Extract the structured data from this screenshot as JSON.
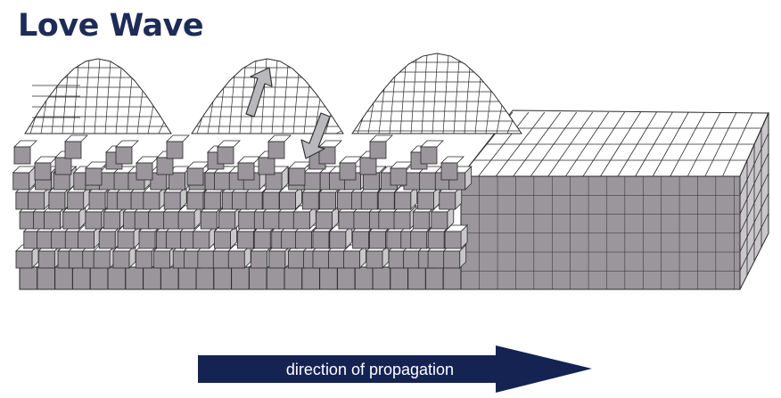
{
  "title": "Love Wave",
  "arrow_label": "direction of propagation",
  "colors": {
    "title": "#1f2b57",
    "arrow": "#152353",
    "arrow_text": "#ffffff",
    "cube_front": "#9a969b",
    "cube_top": "#ffffff",
    "cube_side": "#c9c7ca",
    "grid_line": "#2a2a2a",
    "motion_arrow": "#b9b9bb"
  },
  "icons": {
    "motion_up": "particle-motion-up-arrow-icon",
    "motion_down": "particle-motion-down-arrow-icon"
  }
}
